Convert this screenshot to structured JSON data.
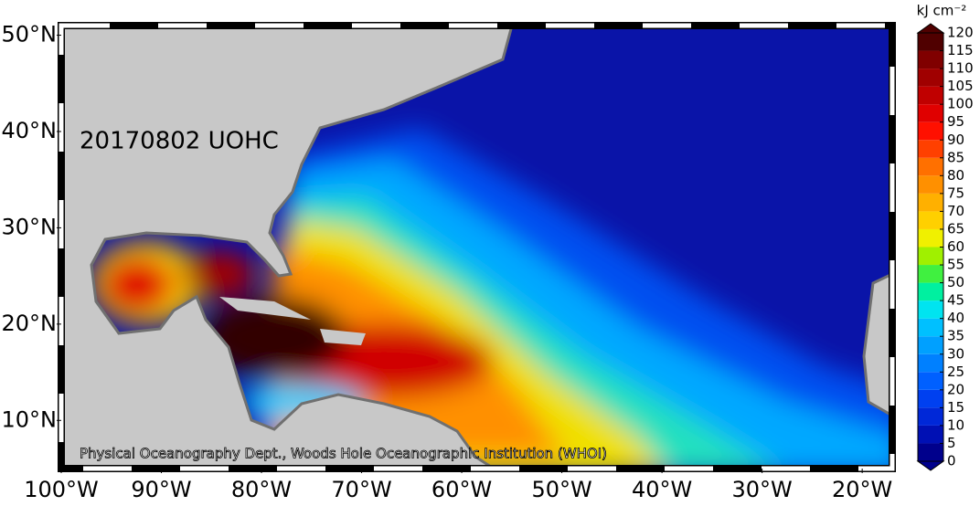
{
  "map": {
    "title": "20170802 UOHC",
    "credit": "Physical Oceanography Dept., Woods Hole Oceanographic Institution (WHOI)",
    "xlim": [
      -100,
      -17
    ],
    "ylim": [
      5,
      51
    ],
    "xticks": [
      {
        "value": -100,
        "label": "100°W"
      },
      {
        "value": -90,
        "label": "90°W"
      },
      {
        "value": -80,
        "label": "80°W"
      },
      {
        "value": -70,
        "label": "70°W"
      },
      {
        "value": -60,
        "label": "60°W"
      },
      {
        "value": -50,
        "label": "50°W"
      },
      {
        "value": -40,
        "label": "40°W"
      },
      {
        "value": -30,
        "label": "30°W"
      },
      {
        "value": -20,
        "label": "20°W"
      }
    ],
    "yticks": [
      {
        "value": 10,
        "label": "10°N"
      },
      {
        "value": 20,
        "label": "20°N"
      },
      {
        "value": 30,
        "label": "30°N"
      },
      {
        "value": 40,
        "label": "40°N"
      },
      {
        "value": 50,
        "label": "50°N"
      }
    ],
    "colorbar": {
      "unit": "kJ cm⁻²",
      "lim": [
        0,
        120
      ],
      "ticks": [
        0,
        5,
        10,
        15,
        20,
        25,
        30,
        35,
        40,
        45,
        50,
        55,
        60,
        65,
        70,
        75,
        80,
        85,
        90,
        95,
        100,
        105,
        110,
        115,
        120
      ],
      "colors": [
        "#00008c",
        "#0010b4",
        "#0028d8",
        "#0040f0",
        "#0060ff",
        "#0080ff",
        "#00a0ff",
        "#00c0ff",
        "#00e4f0",
        "#00f0a0",
        "#40f040",
        "#a0f000",
        "#f0f000",
        "#ffd000",
        "#ffb000",
        "#ff9000",
        "#ff7000",
        "#ff4000",
        "#ff1000",
        "#e00000",
        "#c00000",
        "#a00000",
        "#800000",
        "#500000"
      ]
    }
  }
}
